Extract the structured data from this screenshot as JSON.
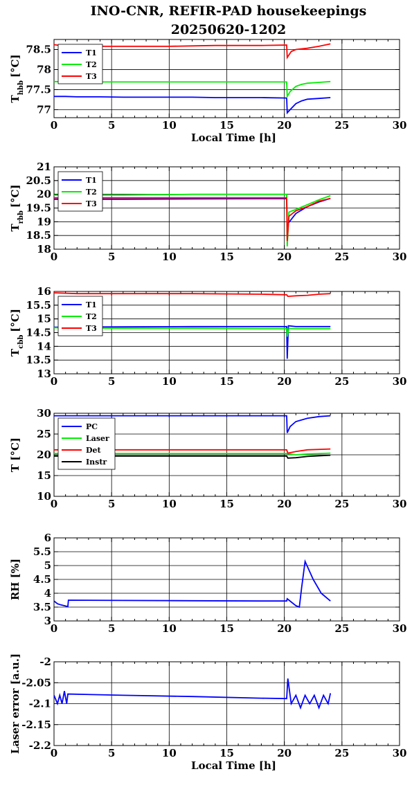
{
  "title_line1": "INO-CNR, REFIR-PAD housekeepings",
  "title_line2": "20250620-1202",
  "chart_data": [
    {
      "type": "line",
      "ylabel_main": "T",
      "ylabel_sub": "hbb",
      "ylabel_unit": "[°C]",
      "xlabel": "Local Time [h]",
      "xlim": [
        0,
        30
      ],
      "ylim": [
        76.8,
        78.75
      ],
      "yticks": [
        77,
        77.5,
        78,
        78.5
      ],
      "ytick_labels": [
        "77",
        "77.5",
        "78",
        "78.5"
      ],
      "grid": true,
      "legend": "top-left",
      "series": [
        {
          "name": "T1",
          "color": "#0000ff",
          "points": [
            [
              0,
              77.33
            ],
            [
              1,
              77.33
            ],
            [
              2,
              77.32
            ],
            [
              4,
              77.32
            ],
            [
              6,
              77.31
            ],
            [
              8,
              77.31
            ],
            [
              10,
              77.31
            ],
            [
              12,
              77.31
            ],
            [
              14,
              77.3
            ],
            [
              16,
              77.3
            ],
            [
              18,
              77.3
            ],
            [
              20.2,
              77.29
            ],
            [
              20.25,
              76.92
            ],
            [
              20.5,
              77.0
            ],
            [
              21,
              77.15
            ],
            [
              21.5,
              77.22
            ],
            [
              22,
              77.26
            ],
            [
              23,
              77.28
            ],
            [
              24,
              77.3
            ]
          ]
        },
        {
          "name": "T2",
          "color": "#00ee00",
          "points": [
            [
              0,
              77.7
            ],
            [
              2,
              77.69
            ],
            [
              6,
              77.69
            ],
            [
              10,
              77.69
            ],
            [
              14,
              77.69
            ],
            [
              18,
              77.69
            ],
            [
              20.2,
              77.69
            ],
            [
              20.25,
              77.33
            ],
            [
              20.5,
              77.45
            ],
            [
              21,
              77.58
            ],
            [
              21.5,
              77.63
            ],
            [
              22,
              77.66
            ],
            [
              23,
              77.68
            ],
            [
              24,
              77.7
            ]
          ]
        },
        {
          "name": "T3",
          "color": "#ff0000",
          "points": [
            [
              0,
              78.62
            ],
            [
              1,
              78.58
            ],
            [
              3,
              78.58
            ],
            [
              6,
              78.58
            ],
            [
              10,
              78.58
            ],
            [
              12,
              78.59
            ],
            [
              14,
              78.6
            ],
            [
              18,
              78.6
            ],
            [
              20.2,
              78.61
            ],
            [
              20.25,
              78.3
            ],
            [
              20.6,
              78.45
            ],
            [
              21,
              78.5
            ],
            [
              22,
              78.53
            ],
            [
              23,
              78.58
            ],
            [
              24,
              78.64
            ]
          ]
        }
      ]
    },
    {
      "type": "line",
      "ylabel_main": "T",
      "ylabel_sub": "rbb",
      "ylabel_unit": "[°C]",
      "xlabel": "",
      "xlim": [
        0,
        30
      ],
      "ylim": [
        18,
        21
      ],
      "yticks": [
        18,
        18.5,
        19,
        19.5,
        20,
        20.5,
        21
      ],
      "ytick_labels": [
        "18",
        "18.5",
        "19",
        "19.5",
        "20",
        "20.5",
        "21"
      ],
      "grid": true,
      "legend": "top-left",
      "series": [
        {
          "name": "T1",
          "color": "#0000ff",
          "points": [
            [
              0,
              19.82
            ],
            [
              6,
              19.82
            ],
            [
              12,
              19.83
            ],
            [
              18,
              19.84
            ],
            [
              20.2,
              19.84
            ],
            [
              20.25,
              18.9
            ],
            [
              21,
              19.3
            ],
            [
              22,
              19.55
            ],
            [
              23,
              19.72
            ],
            [
              24,
              19.85
            ]
          ]
        },
        {
          "name": "T2",
          "color": "#00ee00",
          "points": [
            [
              0,
              19.97
            ],
            [
              6,
              19.97
            ],
            [
              12,
              20.0
            ],
            [
              18,
              20.0
            ],
            [
              20.2,
              20.0
            ],
            [
              20.25,
              18.1
            ],
            [
              20.4,
              19.35
            ],
            [
              21,
              19.45
            ],
            [
              22,
              19.62
            ],
            [
              23,
              19.8
            ],
            [
              24,
              19.95
            ]
          ]
        },
        {
          "name": "T3",
          "color": "#ff0000",
          "points": [
            [
              0,
              19.87
            ],
            [
              6,
              19.87
            ],
            [
              12,
              19.87
            ],
            [
              18,
              19.87
            ],
            [
              20.2,
              19.87
            ],
            [
              20.25,
              18.3
            ],
            [
              20.4,
              19.2
            ],
            [
              21,
              19.4
            ],
            [
              22,
              19.55
            ],
            [
              23,
              19.75
            ],
            [
              24,
              19.85
            ]
          ]
        }
      ]
    },
    {
      "type": "line",
      "ylabel_main": "T",
      "ylabel_sub": "cbb",
      "ylabel_unit": "[°C]",
      "xlabel": "",
      "xlim": [
        0,
        30
      ],
      "ylim": [
        13,
        16
      ],
      "yticks": [
        13,
        13.5,
        14,
        14.5,
        15,
        15.5,
        16
      ],
      "ytick_labels": [
        "13",
        "13.5",
        "14",
        "14.5",
        "15",
        "15.5",
        "16"
      ],
      "grid": true,
      "legend": "top-left",
      "series": [
        {
          "name": "T1",
          "color": "#0000ff",
          "points": [
            [
              0,
              14.7
            ],
            [
              6,
              14.71
            ],
            [
              12,
              14.72
            ],
            [
              18,
              14.72
            ],
            [
              20.2,
              14.72
            ],
            [
              20.25,
              13.55
            ],
            [
              20.35,
              14.75
            ],
            [
              21,
              14.72
            ],
            [
              24,
              14.72
            ]
          ]
        },
        {
          "name": "T2",
          "color": "#00ee00",
          "points": [
            [
              0,
              14.68
            ],
            [
              6,
              14.66
            ],
            [
              12,
              14.66
            ],
            [
              18,
              14.64
            ],
            [
              20.2,
              14.64
            ],
            [
              20.25,
              14.35
            ],
            [
              20.4,
              14.65
            ],
            [
              21,
              14.64
            ],
            [
              24,
              14.64
            ]
          ]
        },
        {
          "name": "T3",
          "color": "#ff0000",
          "points": [
            [
              0,
              15.95
            ],
            [
              2,
              15.92
            ],
            [
              6,
              15.92
            ],
            [
              12,
              15.92
            ],
            [
              18,
              15.9
            ],
            [
              20.2,
              15.88
            ],
            [
              20.3,
              15.82
            ],
            [
              21,
              15.84
            ],
            [
              22,
              15.86
            ],
            [
              23,
              15.9
            ],
            [
              24,
              15.92
            ]
          ]
        }
      ]
    },
    {
      "type": "line",
      "ylabel_main": "T [°C]",
      "ylabel_sub": "",
      "ylabel_unit": "",
      "xlabel": "",
      "xlim": [
        0,
        30
      ],
      "ylim": [
        10,
        30
      ],
      "yticks": [
        10,
        15,
        20,
        25,
        30
      ],
      "ytick_labels": [
        "10",
        "15",
        "20",
        "25",
        "30"
      ],
      "grid": true,
      "legend": "top-left",
      "series": [
        {
          "name": "PC",
          "color": "#0000ff",
          "points": [
            [
              0,
              29.4
            ],
            [
              6,
              29.4
            ],
            [
              12,
              29.4
            ],
            [
              18,
              29.4
            ],
            [
              20.2,
              29.4
            ],
            [
              20.25,
              25.3
            ],
            [
              20.5,
              26.8
            ],
            [
              21,
              28.0
            ],
            [
              22,
              28.8
            ],
            [
              23,
              29.2
            ],
            [
              24,
              29.4
            ]
          ]
        },
        {
          "name": "Laser",
          "color": "#00ee00",
          "points": [
            [
              0,
              20.3
            ],
            [
              6,
              20.3
            ],
            [
              12,
              20.3
            ],
            [
              18,
              20.3
            ],
            [
              20.2,
              20.3
            ],
            [
              21,
              20.0
            ],
            [
              22,
              20.2
            ],
            [
              24,
              20.4
            ]
          ]
        },
        {
          "name": "Det",
          "color": "#ff0000",
          "points": [
            [
              0,
              21.2
            ],
            [
              6,
              21.2
            ],
            [
              12,
              21.2
            ],
            [
              18,
              21.2
            ],
            [
              20.2,
              21.2
            ],
            [
              20.3,
              20.4
            ],
            [
              21,
              20.8
            ],
            [
              22,
              21.2
            ],
            [
              24,
              21.4
            ]
          ]
        },
        {
          "name": "Instr",
          "color": "#000000",
          "points": [
            [
              0,
              19.7
            ],
            [
              6,
              19.7
            ],
            [
              12,
              19.7
            ],
            [
              18,
              19.7
            ],
            [
              20.2,
              19.7
            ],
            [
              20.3,
              19.2
            ],
            [
              21,
              19.3
            ],
            [
              22,
              19.6
            ],
            [
              24,
              19.9
            ]
          ]
        }
      ]
    },
    {
      "type": "line",
      "ylabel_main": "RH [%]",
      "ylabel_sub": "",
      "ylabel_unit": "",
      "xlabel": "",
      "xlim": [
        0,
        30
      ],
      "ylim": [
        3,
        6
      ],
      "yticks": [
        3,
        3.5,
        4,
        4.5,
        5,
        5.5,
        6
      ],
      "ytick_labels": [
        "3",
        "3.5",
        "4",
        "4.5",
        "5",
        "5.5",
        "6"
      ],
      "grid": true,
      "legend": "none",
      "series": [
        {
          "name": "",
          "color": "#0000ff",
          "points": [
            [
              0,
              3.72
            ],
            [
              0.3,
              3.62
            ],
            [
              0.6,
              3.58
            ],
            [
              1.2,
              3.52
            ],
            [
              1.25,
              3.75
            ],
            [
              6,
              3.74
            ],
            [
              12,
              3.73
            ],
            [
              18,
              3.72
            ],
            [
              20.2,
              3.72
            ],
            [
              20.25,
              3.8
            ],
            [
              21,
              3.55
            ],
            [
              21.3,
              3.5
            ],
            [
              21.5,
              4.2
            ],
            [
              21.8,
              5.15
            ],
            [
              22.5,
              4.5
            ],
            [
              23.2,
              4.0
            ],
            [
              24,
              3.72
            ]
          ]
        }
      ]
    },
    {
      "type": "line",
      "ylabel_main": "Laser error [a.u.]",
      "ylabel_sub": "",
      "ylabel_unit": "",
      "xlabel": "Local Time [h]",
      "xlim": [
        0,
        30
      ],
      "ylim": [
        -2.2,
        -2.0
      ],
      "yticks": [
        -2.2,
        -2.15,
        -2.1,
        -2.05,
        -2.0
      ],
      "ytick_labels": [
        "-2.2",
        "-2.15",
        "-2.1",
        "-2.05",
        "-2"
      ],
      "grid": true,
      "legend": "none",
      "series": [
        {
          "name": "",
          "color": "#0000ff",
          "points": [
            [
              0,
              -2.08
            ],
            [
              0.3,
              -2.1
            ],
            [
              0.5,
              -2.08
            ],
            [
              0.7,
              -2.1
            ],
            [
              0.9,
              -2.07
            ],
            [
              1.1,
              -2.1
            ],
            [
              1.2,
              -2.077
            ],
            [
              6,
              -2.08
            ],
            [
              12,
              -2.083
            ],
            [
              18,
              -2.087
            ],
            [
              20.2,
              -2.088
            ],
            [
              20.3,
              -2.04
            ],
            [
              20.6,
              -2.1
            ],
            [
              21,
              -2.08
            ],
            [
              21.4,
              -2.11
            ],
            [
              21.8,
              -2.08
            ],
            [
              22.2,
              -2.1
            ],
            [
              22.6,
              -2.08
            ],
            [
              23,
              -2.11
            ],
            [
              23.4,
              -2.08
            ],
            [
              23.8,
              -2.1
            ],
            [
              24,
              -2.075
            ]
          ]
        }
      ]
    }
  ]
}
